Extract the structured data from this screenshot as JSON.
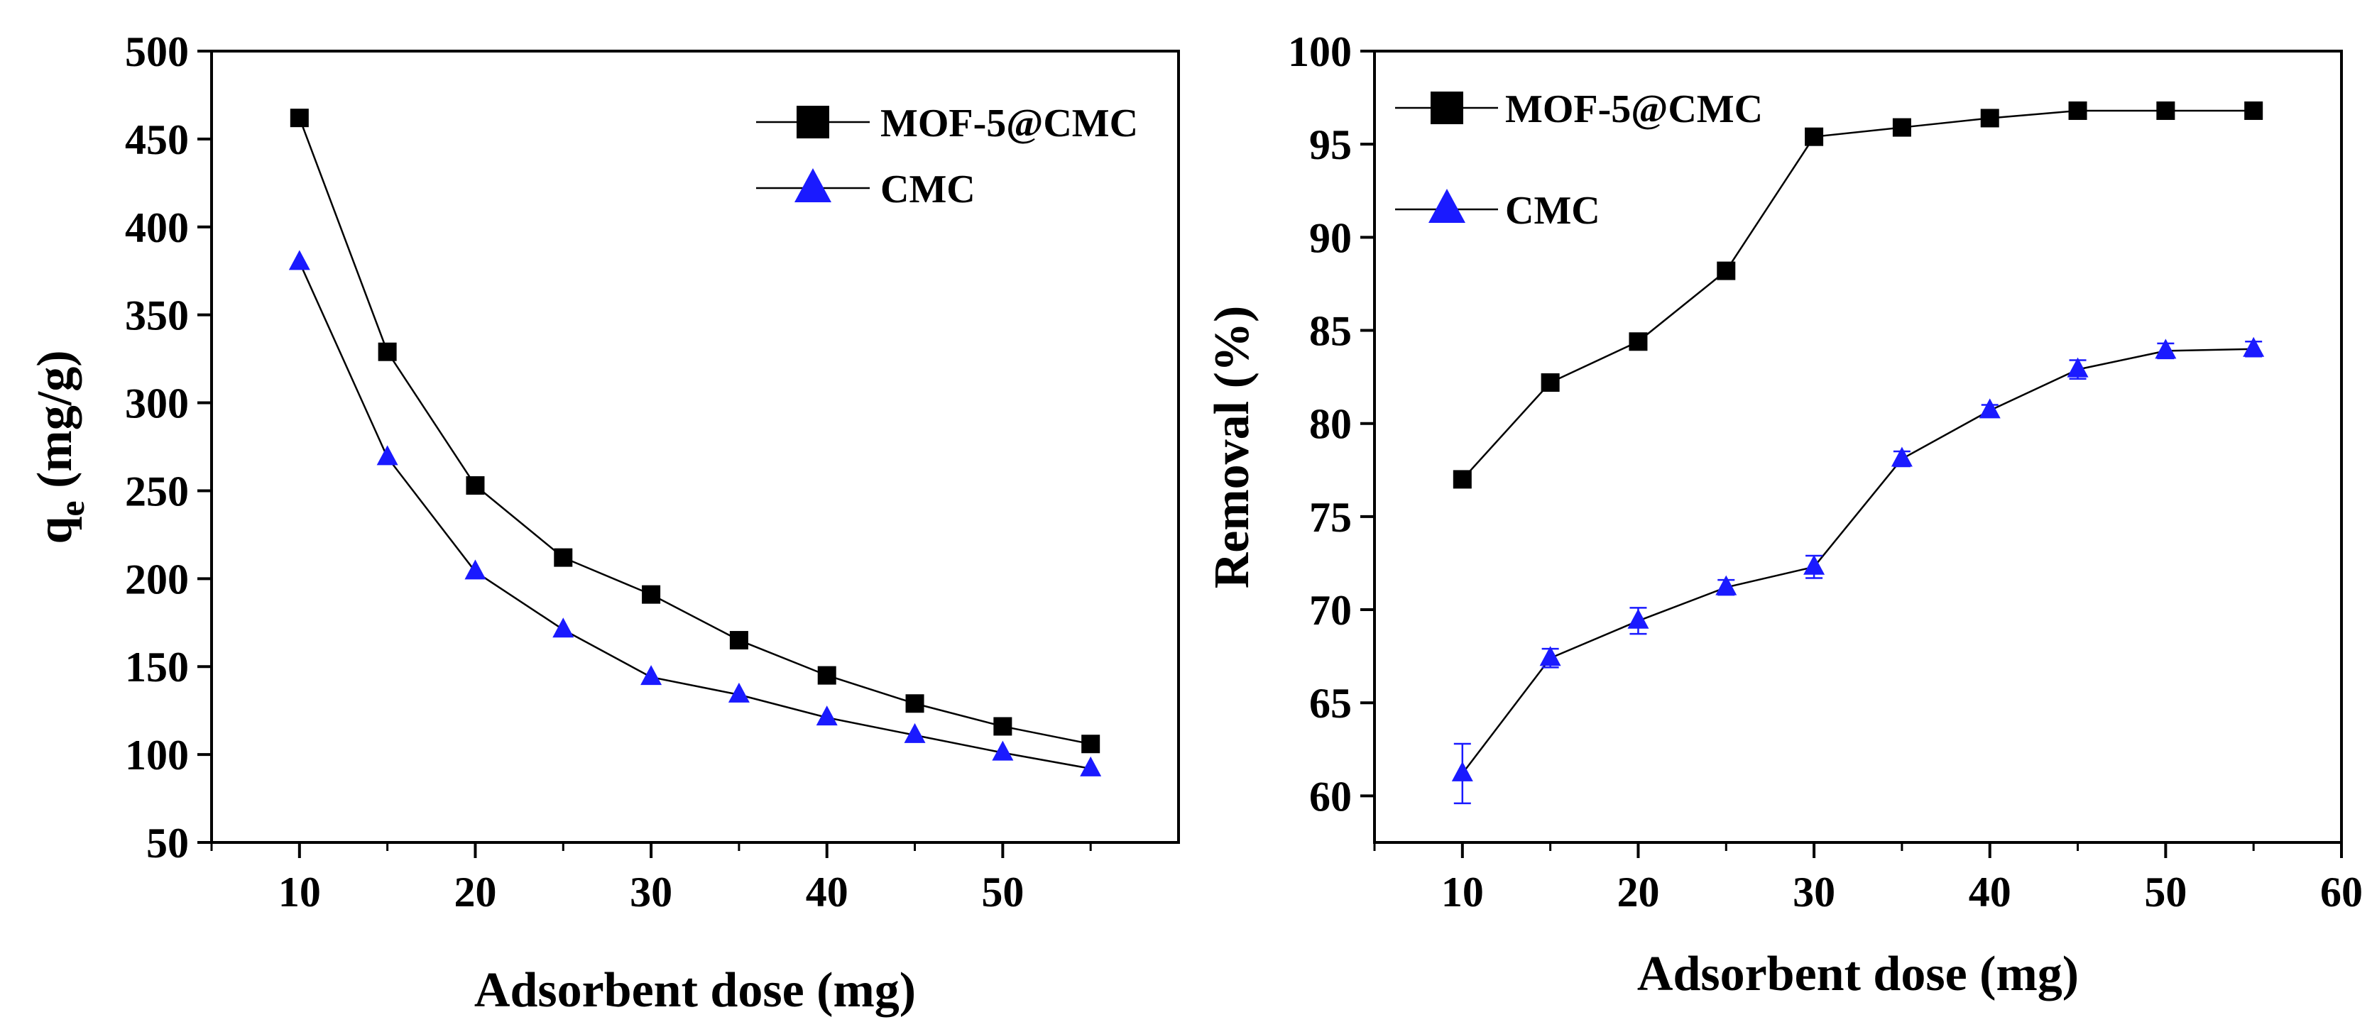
{
  "chart_data": [
    {
      "type": "line",
      "xlabel": "Adsorbent dose (mg)",
      "ylabel_main": "q",
      "ylabel_sub": "e",
      "ylabel_rest": " (mg/g)",
      "xlim": [
        5,
        60
      ],
      "ylim": [
        50,
        500
      ],
      "xticks": [
        10,
        20,
        30,
        40,
        50
      ],
      "xticks_minor": [
        5,
        15,
        25,
        35,
        45,
        55
      ],
      "yticks": [
        50,
        100,
        150,
        200,
        250,
        300,
        350,
        400,
        450,
        500
      ],
      "legend_position": "top-right",
      "series": [
        {
          "name": "MOF-5@CMC",
          "marker": "square",
          "color": "#000000",
          "x": [
            10,
            15,
            20,
            25,
            30,
            35,
            40,
            45,
            50,
            55
          ],
          "y": [
            462,
            329,
            253,
            212,
            191,
            165,
            145,
            129,
            116,
            106
          ]
        },
        {
          "name": "CMC",
          "marker": "triangle",
          "color": "#1a1aff",
          "x": [
            10,
            15,
            20,
            25,
            30,
            35,
            40,
            45,
            50,
            55
          ],
          "y": [
            380,
            269,
            204,
            171,
            144,
            134,
            121,
            111,
            101,
            92
          ]
        }
      ]
    },
    {
      "type": "line",
      "xlabel": "Adsorbent dose (mg)",
      "ylabel": "Removal (%)",
      "xlim": [
        5,
        60
      ],
      "ylim": [
        57.5,
        100
      ],
      "xticks": [
        10,
        20,
        30,
        40,
        50,
        60
      ],
      "xticks_minor": [
        5,
        15,
        25,
        35,
        45,
        55
      ],
      "yticks": [
        60,
        65,
        70,
        75,
        80,
        85,
        90,
        95,
        100
      ],
      "legend_position": "top-left",
      "series": [
        {
          "name": "MOF-5@CMC",
          "marker": "square",
          "color": "#000000",
          "x": [
            10,
            15,
            20,
            25,
            30,
            35,
            40,
            45,
            50,
            55
          ],
          "y": [
            77.0,
            82.2,
            84.4,
            88.2,
            95.4,
            95.9,
            96.4,
            96.8,
            96.8,
            96.8
          ]
        },
        {
          "name": "CMC",
          "marker": "triangle",
          "color": "#1a1aff",
          "x": [
            10,
            15,
            20,
            25,
            30,
            35,
            40,
            45,
            50,
            55
          ],
          "y": [
            61.2,
            67.4,
            69.4,
            71.2,
            72.3,
            78.1,
            80.7,
            82.9,
            83.9,
            84.0
          ],
          "error": [
            1.6,
            0.5,
            0.7,
            0.4,
            0.6,
            0.4,
            0.3,
            0.5,
            0.4,
            0.4
          ]
        }
      ]
    }
  ]
}
